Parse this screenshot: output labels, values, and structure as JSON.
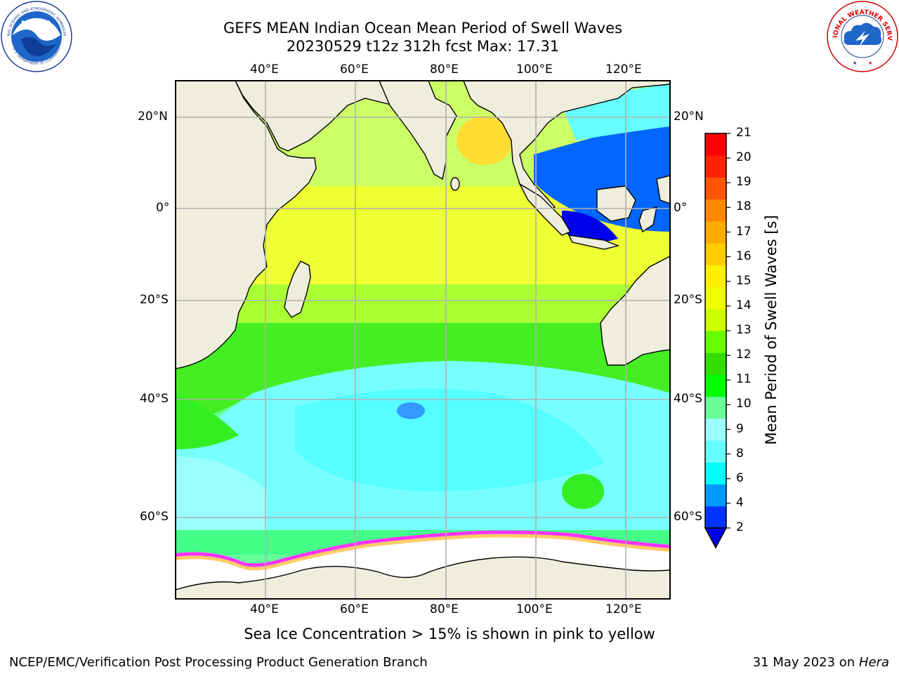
{
  "header": {
    "title_line1": "GEFS MEAN Indian Ocean Mean Period of Swell Waves",
    "title_line2": "20230529 t12z 312h fcst   Max: 17.31"
  },
  "logos": {
    "left": "noaa-logo",
    "left_text": "NOAA",
    "left_ring_top": "NATIONAL OCEANIC AND ATMOSPHERIC ADMINISTRATION",
    "left_ring_bottom": "U.S. DEPARTMENT OF COMMERCE",
    "right": "nws-logo",
    "right_ring": "NATIONAL WEATHER SERVICE"
  },
  "map": {
    "lon_range": [
      20,
      130
    ],
    "lat_range": [
      -72,
      28
    ],
    "lon_ticks": [
      "40°E",
      "60°E",
      "80°E",
      "100°E",
      "120°E"
    ],
    "lat_ticks": [
      "20°N",
      "0°",
      "20°S",
      "40°S",
      "60°S"
    ],
    "grid": true,
    "land_color": "#efeedc",
    "ice_color": "#ffffff",
    "ice_edge_colors": [
      "#ff33ff",
      "#ff66cc",
      "#ffcc66",
      "#ffff66"
    ]
  },
  "colorbar": {
    "label": "Mean Period of Swell Waves [s]",
    "tick_labels": [
      "2",
      "4",
      "6",
      "8",
      "9",
      "10",
      "11",
      "12",
      "13",
      "14",
      "15",
      "16",
      "17",
      "18",
      "19",
      "20",
      "21"
    ],
    "colors": [
      "#0033ff",
      "#0099ff",
      "#00ffff",
      "#66ffff",
      "#99ffff",
      "#66ff99",
      "#00ff00",
      "#33dd00",
      "#66ff00",
      "#ccff00",
      "#eeff00",
      "#ffee00",
      "#ffcc00",
      "#ffaa00",
      "#ff8800",
      "#ff5500",
      "#ff2200",
      "#ff0000"
    ],
    "under_color": "#0000ee",
    "extend": "min"
  },
  "annotation": {
    "ice_note": "Sea Ice Concentration > 15% is shown in pink to yellow"
  },
  "footer": {
    "left": "NCEP/EMC/Verification Post Processing Product Generation Branch",
    "right_date": "31 May 2023 on ",
    "right_host": "Hera"
  }
}
